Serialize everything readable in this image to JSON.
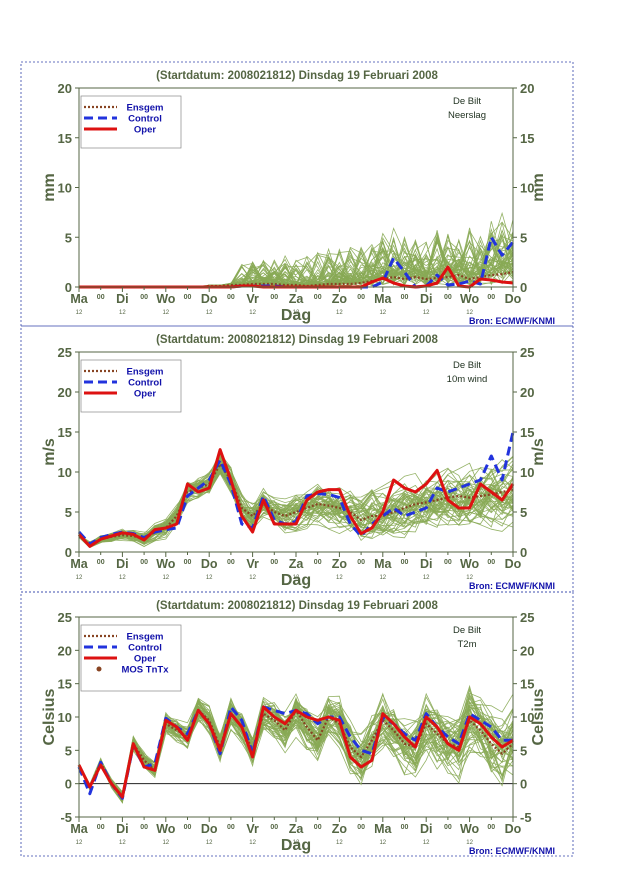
{
  "day_labels": [
    "Ma",
    "Di",
    "Wo",
    "Do",
    "Vr",
    "Za",
    "Zo",
    "Ma",
    "Di",
    "Wo",
    "Do"
  ],
  "mid_label": "00",
  "hour_label": "12",
  "xlabel": "Dag",
  "source": "Bron: ECMWF/KNMI",
  "colors": {
    "ensemble": "#88aa55",
    "ensgem": "#884422",
    "control": "#2233dd",
    "oper": "#dd1111",
    "mos": "#884422",
    "axis": "#556644",
    "legend_text": "#1111aa",
    "station": "#223322"
  },
  "chart_data": [
    {
      "type": "line",
      "title": "(Startdatum: 2008021812)   Dinsdag   19 Februari  2008",
      "station": "De Bilt",
      "variable": "Neerslag",
      "ylabel": "mm",
      "ylim": [
        0,
        20
      ],
      "yticks": [
        0,
        5,
        10,
        15,
        20
      ],
      "x_steps": 41,
      "series": [
        {
          "name": "Ensgem",
          "key": "ensgem",
          "values": [
            0,
            0,
            0,
            0,
            0,
            0,
            0,
            0,
            0,
            0,
            0,
            0,
            0.1,
            0.1,
            0.2,
            0.2,
            0.3,
            0.3,
            0.3,
            0.2,
            0.2,
            0.1,
            0.2,
            0.3,
            0.3,
            0.3,
            0.4,
            0.6,
            0.8,
            1.0,
            0.8,
            1.0,
            0.8,
            0.9,
            1.0,
            1.2,
            0.8,
            1.0,
            1.2,
            1.3,
            1.5
          ]
        },
        {
          "name": "Control",
          "key": "control",
          "values": [
            0,
            0,
            0,
            0,
            0,
            0,
            0,
            0,
            0,
            0,
            0,
            0,
            0,
            0,
            0,
            0.1,
            0.1,
            0.1,
            0.1,
            0,
            0,
            0,
            0,
            0,
            0,
            0,
            0,
            0,
            0.5,
            2.9,
            1.5,
            0,
            0.1,
            1.2,
            0.2,
            0.3,
            0.6,
            0.3,
            5.0,
            3.2,
            4.5
          ]
        },
        {
          "name": "Oper",
          "key": "oper",
          "values": [
            0,
            0,
            0,
            0,
            0,
            0,
            0,
            0,
            0,
            0,
            0,
            0,
            0,
            0,
            0,
            0.1,
            0.1,
            0,
            0,
            0,
            0,
            0,
            0,
            0,
            0,
            0,
            0,
            0.5,
            0.9,
            0.4,
            0.1,
            0,
            0.1,
            0.4,
            2.0,
            0.1,
            0,
            0.8,
            0.7,
            0.5,
            0.4
          ]
        }
      ]
    },
    {
      "type": "line",
      "title": "(Startdatum: 2008021812)   Dinsdag   19 Februari  2008",
      "station": "De Bilt",
      "variable": "10m wind",
      "ylabel": "m/s",
      "ylim": [
        0,
        25
      ],
      "yticks": [
        0,
        5,
        10,
        15,
        20,
        25
      ],
      "x_steps": 41,
      "series": [
        {
          "name": "Ensgem",
          "key": "ensgem",
          "values": [
            2.0,
            0.9,
            1.6,
            1.9,
            2.1,
            2.0,
            1.6,
            2.5,
            3.0,
            4.5,
            7.5,
            8.0,
            8.5,
            11.0,
            9.0,
            5.5,
            4.5,
            6.0,
            5.0,
            4.5,
            5.0,
            5.5,
            6.0,
            5.8,
            5.5,
            5.0,
            4.0,
            4.5,
            4.5,
            5.0,
            5.5,
            6.0,
            6.2,
            6.5,
            6.8,
            7.0,
            6.8,
            7.0,
            7.2,
            7.5,
            7.8
          ]
        },
        {
          "name": "Control",
          "key": "control",
          "values": [
            2.5,
            1.0,
            1.8,
            2.2,
            2.5,
            2.3,
            1.8,
            2.5,
            2.8,
            3.0,
            7.0,
            8.0,
            9.0,
            11.5,
            8.5,
            3.5,
            3.0,
            7.0,
            4.0,
            3.5,
            3.8,
            7.0,
            7.3,
            7.2,
            6.8,
            3.5,
            2.0,
            3.5,
            4.5,
            5.5,
            4.5,
            5.0,
            5.5,
            8.0,
            7.5,
            8.0,
            8.5,
            9.0,
            12.0,
            9.0,
            15.0
          ]
        },
        {
          "name": "Oper",
          "key": "oper",
          "values": [
            2.2,
            0.7,
            1.6,
            2.0,
            2.4,
            2.2,
            1.5,
            2.8,
            3.0,
            3.5,
            8.5,
            7.5,
            8.0,
            12.8,
            9.0,
            4.5,
            2.5,
            6.5,
            3.5,
            3.5,
            3.5,
            6.5,
            7.5,
            7.8,
            7.8,
            4.5,
            2.3,
            3.0,
            5.0,
            9.0,
            8.0,
            7.5,
            8.5,
            10.2,
            6.5,
            5.5,
            5.5,
            8.5,
            7.5,
            6.5,
            8.5
          ]
        }
      ]
    },
    {
      "type": "line",
      "title": "(Startdatum: 2008021812)   Dinsdag   19 Februari  2008",
      "station": "De Bilt",
      "variable": "T2m",
      "ylabel": "Celsius",
      "ylim": [
        -5,
        25
      ],
      "yticks": [
        -5,
        0,
        5,
        10,
        15,
        20,
        25
      ],
      "x_steps": 41,
      "series": [
        {
          "name": "Ensgem",
          "key": "ensgem",
          "values": [
            2.8,
            -0.5,
            3.2,
            0,
            -2.0,
            6.0,
            3.5,
            2.0,
            9.0,
            8.0,
            7.0,
            11.0,
            9.5,
            5.5,
            10.5,
            8.5,
            5.0,
            10.5,
            9.5,
            8.0,
            11.0,
            8.5,
            6.5,
            10.0,
            9.0,
            5.5,
            4.0,
            6.5,
            9.5,
            8.0,
            6.0,
            5.5,
            9.0,
            7.5,
            6.0,
            5.5,
            9.5,
            8.0,
            6.0,
            4.5,
            6.0
          ]
        },
        {
          "name": "Control",
          "key": "control",
          "values": [
            2.5,
            -1.5,
            3.2,
            0,
            -2.2,
            5.8,
            2.5,
            3.0,
            9.8,
            8.5,
            7.5,
            11.0,
            9.0,
            4.5,
            11.5,
            9.5,
            4.5,
            11.5,
            11.0,
            10.5,
            11.0,
            10.5,
            9.0,
            10.0,
            10.0,
            7.0,
            5.0,
            4.5,
            10.0,
            9.0,
            7.5,
            6.5,
            10.5,
            8.5,
            7.0,
            6.0,
            10.5,
            9.5,
            8.5,
            6.5,
            6.5
          ]
        },
        {
          "name": "Oper",
          "key": "oper",
          "values": [
            2.8,
            -0.5,
            2.8,
            0,
            -2.0,
            6.0,
            2.5,
            2.0,
            9.5,
            8.5,
            6.5,
            11.0,
            9.0,
            5.0,
            10.5,
            8.5,
            4.0,
            11.5,
            10.0,
            9.0,
            11.0,
            10.0,
            9.5,
            10.0,
            9.5,
            4.0,
            2.5,
            3.5,
            10.5,
            9.0,
            7.0,
            5.5,
            10.0,
            8.5,
            6.0,
            5.0,
            10.0,
            9.0,
            7.0,
            5.5,
            6.5
          ]
        }
      ],
      "mos": {
        "name": "MOS TnTx"
      }
    }
  ]
}
